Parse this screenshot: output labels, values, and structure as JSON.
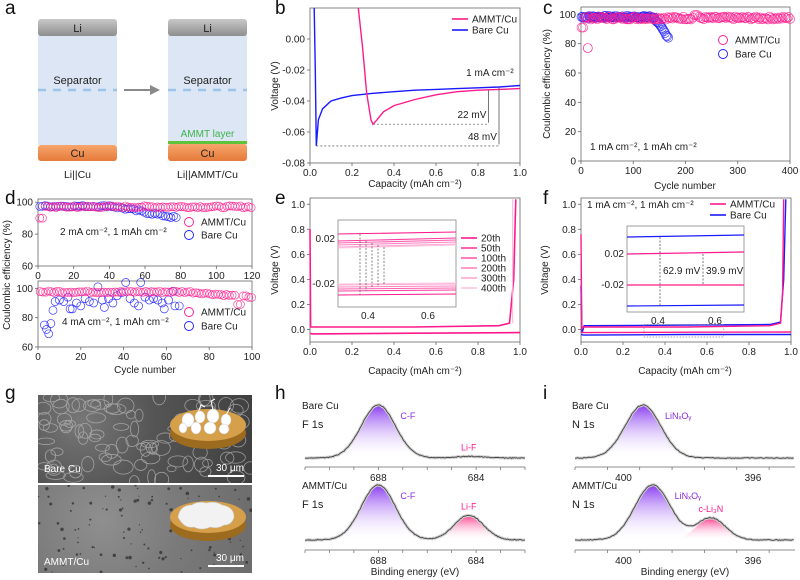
{
  "colors": {
    "ammt": "#ff1a8c",
    "bare": "#1a1aff",
    "purple": "#8a2be2",
    "li_gray": "#9a9a9a",
    "separator_bg": "#dce6f5",
    "separator_dash": "#9cc3ea",
    "cu_orange": "#ef8a4a",
    "ammt_green": "#3cb44b"
  },
  "panels": {
    "a": {
      "letter": "a",
      "left_cell": {
        "top": "Li",
        "middle": "Separator",
        "bottom": "Cu",
        "caption": "Li||Cu"
      },
      "right_cell": {
        "top": "Li",
        "middle": "Separator",
        "layer": "AMMT layer",
        "bottom": "Cu",
        "caption": "Li||AMMT/Cu"
      }
    },
    "b": {
      "letter": "b"
    },
    "c": {
      "letter": "c"
    },
    "d": {
      "letter": "d"
    },
    "e": {
      "letter": "e"
    },
    "f": {
      "letter": "f"
    },
    "g": {
      "letter": "g",
      "top_label": "Bare Cu",
      "bottom_label": "AMMT/Cu",
      "scale_bar": "30 μm"
    },
    "h": {
      "letter": "h"
    },
    "i": {
      "letter": "i"
    }
  },
  "chart_data": [
    {
      "id": "b",
      "type": "line",
      "title": "",
      "xlabel": "Capacity (mAh cm⁻²)",
      "ylabel": "Voltage (V)",
      "xlim": [
        0,
        1.0
      ],
      "ylim": [
        -0.08,
        0.02
      ],
      "xticks": [
        "0.0",
        "0.2",
        "0.4",
        "0.6",
        "0.8",
        "1.0"
      ],
      "yticks": [
        "-0.08",
        "-0.06",
        "-0.04",
        "-0.02",
        "0.00"
      ],
      "legend": [
        "AMMT/Cu",
        "Bare Cu"
      ],
      "legend_position": "top-right",
      "annotations": [
        "1 mA cm⁻²",
        "22 mV",
        "48 mV"
      ],
      "series": [
        {
          "name": "AMMT/Cu",
          "x": [
            0.23,
            0.25,
            0.27,
            0.29,
            0.3,
            0.32,
            0.35,
            0.4,
            0.5,
            0.6,
            0.7,
            0.8,
            0.9,
            1.0
          ],
          "y": [
            0.02,
            -0.005,
            -0.035,
            -0.052,
            -0.055,
            -0.052,
            -0.047,
            -0.043,
            -0.039,
            -0.036,
            -0.034,
            -0.033,
            -0.0325,
            -0.032
          ]
        },
        {
          "name": "Bare Cu",
          "x": [
            0.02,
            0.025,
            0.03,
            0.04,
            0.06,
            0.1,
            0.15,
            0.2,
            0.3,
            0.4,
            0.5,
            0.6,
            0.7,
            0.8,
            0.9,
            1.0
          ],
          "y": [
            0.02,
            -0.02,
            -0.069,
            -0.052,
            -0.045,
            -0.04,
            -0.038,
            -0.0365,
            -0.035,
            -0.034,
            -0.033,
            -0.0325,
            -0.032,
            -0.0315,
            -0.031,
            -0.03
          ]
        }
      ]
    },
    {
      "id": "c",
      "type": "scatter",
      "xlabel": "Cycle number",
      "ylabel": "Coulombic efficiency (%)",
      "xlim": [
        0,
        400
      ],
      "ylim": [
        0,
        105
      ],
      "xticks": [
        "0",
        "100",
        "200",
        "300",
        "400"
      ],
      "yticks": [
        "0",
        "20",
        "40",
        "60",
        "80",
        "100"
      ],
      "legend": [
        "AMMT/Cu",
        "Bare Cu"
      ],
      "legend_position": "right",
      "annotation": "1 mA cm⁻², 1 mAh cm⁻²",
      "series": [
        {
          "name": "AMMT/Cu",
          "summary": "≈97–98% from cycle 1 to 400; outlier ≈77% near cycle 13"
        },
        {
          "name": "Bare Cu",
          "summary": "≈98% until ~140 cycles, then declines to ≈83% at ~168 cycles"
        }
      ]
    },
    {
      "id": "d-top",
      "type": "scatter",
      "xlabel": "",
      "ylabel": "Coulombic efficiency (%)",
      "xlim": [
        0,
        120
      ],
      "ylim": [
        60,
        102
      ],
      "xticks": [
        "0",
        "20",
        "40",
        "60",
        "80",
        "100",
        "120"
      ],
      "yticks": [
        "60",
        "80",
        "100"
      ],
      "legend": [
        "AMMT/Cu",
        "Bare Cu"
      ],
      "annotation": "2 mA cm⁻², 1 mAh cm⁻²",
      "series": [
        {
          "name": "AMMT/Cu",
          "summary": "≈97% over 120 cycles"
        },
        {
          "name": "Bare Cu",
          "summary": "≈97% declining to ≈89% by cycle 78"
        }
      ]
    },
    {
      "id": "d-bottom",
      "type": "scatter",
      "xlabel": "Cycle number",
      "ylabel": "Coulombic efficiency (%)",
      "xlim": [
        0,
        100
      ],
      "ylim": [
        60,
        105
      ],
      "xticks": [
        "0",
        "20",
        "40",
        "60",
        "80",
        "100"
      ],
      "yticks": [
        "60",
        "80",
        "100"
      ],
      "legend": [
        "AMMT/Cu",
        "Bare Cu"
      ],
      "annotation": "4 mA cm⁻², 1 mAh cm⁻²",
      "series": [
        {
          "name": "AMMT/Cu",
          "summary": "≈96% over 100 cycles, slight decline to ≈93%"
        },
        {
          "name": "Bare Cu",
          "summary": "fluctuates 70–104%, ends at ~66 cycles"
        }
      ]
    },
    {
      "id": "e",
      "type": "line",
      "xlabel": "Capacity (mAh cm⁻²)",
      "ylabel": "Voltage (V)",
      "xlim": [
        0,
        1.0
      ],
      "ylim": [
        -0.1,
        1.05
      ],
      "xticks": [
        "0.0",
        "0.2",
        "0.4",
        "0.6",
        "0.8",
        "1.0"
      ],
      "yticks": [
        "0.0",
        "0.2",
        "0.4",
        "0.6",
        "0.8",
        "1.0"
      ],
      "legend": [
        "20th",
        "50th",
        "100th",
        "200th",
        "300th",
        "400th"
      ],
      "inset": {
        "xticks": [
          "0.4",
          "0.6"
        ],
        "yticks": [
          "0.02",
          "-0.02"
        ]
      }
    },
    {
      "id": "f",
      "type": "line",
      "xlabel": "Capacity (mAh cm⁻²)",
      "ylabel": "Voltage (V)",
      "xlim": [
        0,
        1.0
      ],
      "ylim": [
        -0.1,
        1.05
      ],
      "xticks": [
        "0.0",
        "0.2",
        "0.4",
        "0.6",
        "0.8",
        "1.0"
      ],
      "yticks": [
        "0.0",
        "0.2",
        "0.4",
        "0.6",
        "0.8",
        "1.0"
      ],
      "legend": [
        "AMMT/Cu",
        "Bare Cu"
      ],
      "annotation": "1 mA cm⁻², 1 mAh cm⁻²",
      "inset": {
        "xticks": [
          "0.4",
          "0.6"
        ],
        "yticks": [
          "0.02",
          "-0.02"
        ],
        "labels": [
          "62.9 mV",
          "39.9 mV"
        ]
      }
    },
    {
      "id": "h",
      "type": "area",
      "xlabel": "Binding energy (eV)",
      "xticks": [
        "688",
        "684"
      ],
      "panels": [
        {
          "sample": "Bare Cu",
          "core": "F 1s",
          "peaks": [
            {
              "label": "C-F",
              "center": 688,
              "rel_height": 1.0
            },
            {
              "label": "Li-F",
              "center": 684.3,
              "rel_height": 0.03
            }
          ]
        },
        {
          "sample": "AMMT/Cu",
          "core": "F 1s",
          "peaks": [
            {
              "label": "C-F",
              "center": 688,
              "rel_height": 1.0
            },
            {
              "label": "Li-F",
              "center": 684.3,
              "rel_height": 0.45
            }
          ]
        }
      ]
    },
    {
      "id": "i",
      "type": "area",
      "xlabel": "Binding energy (eV)",
      "xticks": [
        "400",
        "396"
      ],
      "panels": [
        {
          "sample": "Bare Cu",
          "core": "N 1s",
          "peaks": [
            {
              "label": "LiNₓOᵧ",
              "center": 399.4,
              "rel_height": 1.0
            }
          ]
        },
        {
          "sample": "AMMT/Cu",
          "core": "N 1s",
          "peaks": [
            {
              "label": "LiNₓOᵧ",
              "center": 399.1,
              "rel_height": 1.0
            },
            {
              "label": "c-Li₃N",
              "center": 397.3,
              "rel_height": 0.4
            }
          ]
        }
      ]
    }
  ]
}
